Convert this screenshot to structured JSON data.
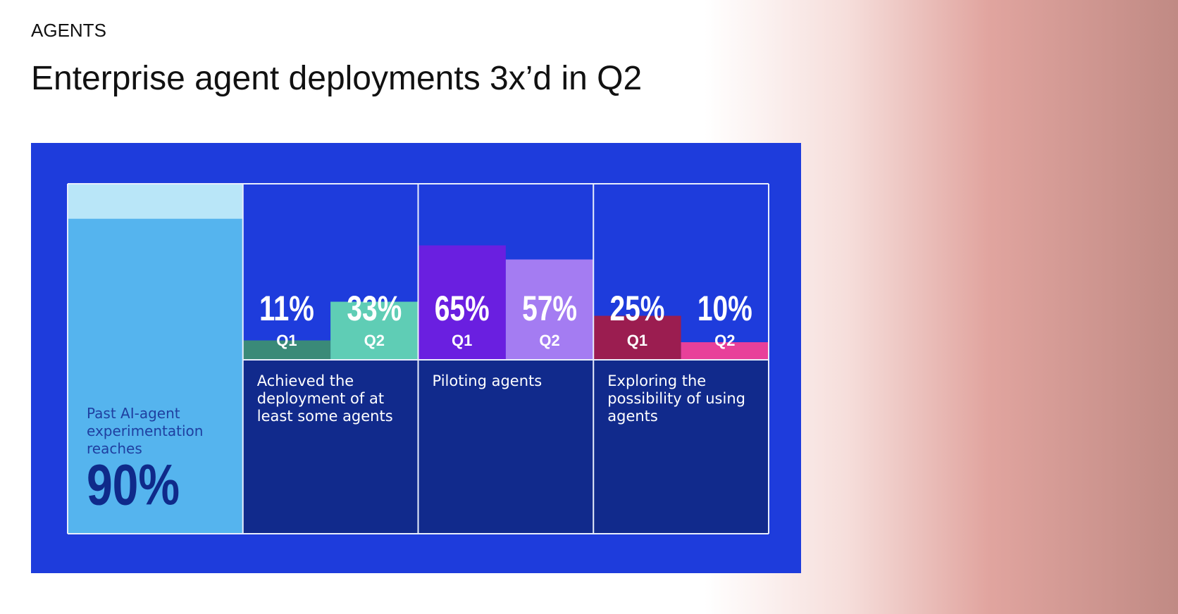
{
  "section": "AGENTS",
  "chart_data": {
    "type": "bar",
    "title": "Enterprise agent deployments 3x’d in Q2",
    "highlight": {
      "label": "Past AI-agent experimentation reaches",
      "value": 90,
      "value_label": "90%",
      "color": "#55b4ee",
      "track_color": "#b9e6f8"
    },
    "categories": [
      "Achieved the deployment of at least some agents",
      "Piloting agents",
      "Exploring the possibility of using agents"
    ],
    "series": [
      {
        "name": "Q1",
        "values": [
          11,
          65,
          25
        ],
        "value_labels": [
          "11%",
          "65%",
          "25%"
        ],
        "colors": [
          "#3a8a78",
          "#6a1fe0",
          "#9b1d50"
        ]
      },
      {
        "name": "Q2",
        "values": [
          33,
          57,
          10
        ],
        "value_labels": [
          "33%",
          "57%",
          "10%"
        ],
        "colors": [
          "#5fcdb5",
          "#a47cf2",
          "#e8409a"
        ]
      }
    ],
    "ylim": [
      0,
      100
    ]
  }
}
